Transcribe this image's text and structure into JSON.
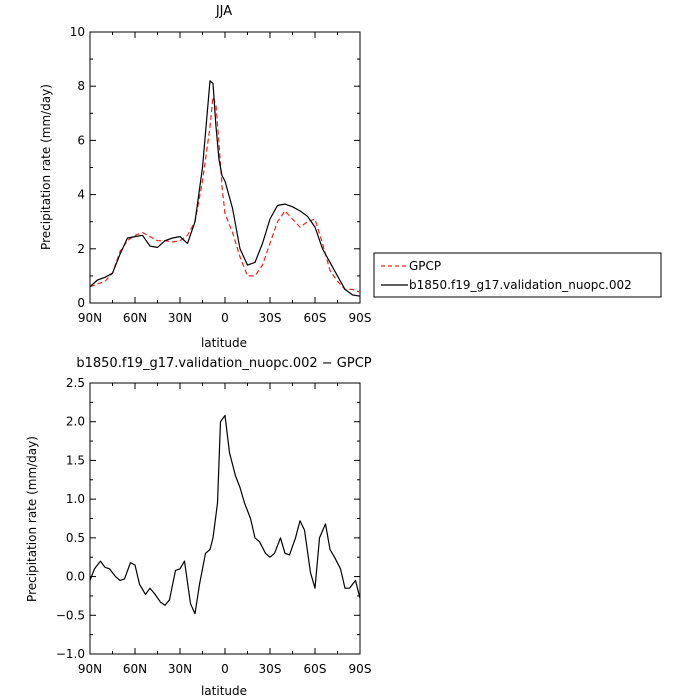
{
  "chart_data": [
    {
      "type": "line",
      "title": "JJA",
      "xlabel": "latitude",
      "ylabel": "Precipitation rate (mm/day)",
      "x_ticks": [
        90,
        60,
        30,
        0,
        -30,
        -60,
        -90
      ],
      "x_tick_labels": [
        "90N",
        "60N",
        "30N",
        "0",
        "30S",
        "60S",
        "90S"
      ],
      "xlim": [
        90,
        -90
      ],
      "ylim": [
        0,
        10
      ],
      "y_ticks": [
        0,
        2,
        4,
        6,
        8,
        10
      ],
      "y_tick_labels": [
        "0",
        "2",
        "4",
        "6",
        "8",
        "10"
      ],
      "legend_position": "right",
      "series": [
        {
          "name": "GPCP",
          "color": "#e8261f",
          "style": "dashed",
          "x": [
            90,
            85,
            80,
            75,
            70,
            65,
            60,
            55,
            50,
            45,
            40,
            35,
            30,
            25,
            20,
            15,
            10,
            8,
            6,
            4,
            2,
            0,
            -5,
            -10,
            -15,
            -20,
            -25,
            -30,
            -35,
            -40,
            -45,
            -50,
            -55,
            -60,
            -65,
            -70,
            -75,
            -80,
            -85,
            -90
          ],
          "values": [
            0.6,
            0.7,
            0.8,
            1.1,
            1.9,
            2.3,
            2.5,
            2.6,
            2.45,
            2.3,
            2.3,
            2.25,
            2.3,
            2.5,
            3.0,
            4.5,
            6.5,
            7.6,
            7.3,
            5.9,
            4.3,
            3.3,
            2.6,
            1.7,
            1.0,
            1.0,
            1.4,
            2.2,
            3.0,
            3.4,
            3.1,
            2.8,
            3.0,
            3.1,
            2.2,
            1.2,
            0.8,
            0.5,
            0.5,
            0.4
          ]
        },
        {
          "name": "b1850.f19_g17.validation_nuopc.002",
          "color": "#000000",
          "style": "solid",
          "x": [
            90,
            85,
            80,
            75,
            70,
            65,
            60,
            55,
            50,
            45,
            40,
            35,
            30,
            25,
            20,
            15,
            10,
            8,
            6,
            4,
            2,
            0,
            -5,
            -10,
            -15,
            -20,
            -25,
            -30,
            -35,
            -40,
            -45,
            -50,
            -55,
            -60,
            -65,
            -70,
            -75,
            -80,
            -85,
            -90
          ],
          "values": [
            0.6,
            0.85,
            0.95,
            1.1,
            1.8,
            2.4,
            2.45,
            2.5,
            2.1,
            2.05,
            2.3,
            2.4,
            2.45,
            2.2,
            3.0,
            5.0,
            8.2,
            8.1,
            6.5,
            5.3,
            4.7,
            4.5,
            3.5,
            2.0,
            1.4,
            1.5,
            2.2,
            3.1,
            3.6,
            3.65,
            3.55,
            3.4,
            3.2,
            2.8,
            2.0,
            1.5,
            1.0,
            0.5,
            0.3,
            0.25
          ]
        }
      ]
    },
    {
      "type": "line",
      "title": "b1850.f19_g17.validation_nuopc.002 − GPCP",
      "xlabel": "latitude",
      "ylabel": "Precipitation rate (mm/day)",
      "x_ticks": [
        90,
        60,
        30,
        0,
        -30,
        -60,
        -90
      ],
      "x_tick_labels": [
        "90N",
        "60N",
        "30N",
        "0",
        "30S",
        "60S",
        "90S"
      ],
      "xlim": [
        90,
        -90
      ],
      "ylim": [
        -1.0,
        2.5
      ],
      "y_ticks": [
        -1.0,
        -0.5,
        0.0,
        0.5,
        1.0,
        1.5,
        2.0,
        2.5
      ],
      "y_tick_labels": [
        "−1.0",
        "−0.5",
        "0.0",
        "0.5",
        "1.0",
        "1.5",
        "2.0",
        "2.5"
      ],
      "series": [
        {
          "color": "#000000",
          "style": "solid",
          "x": [
            90,
            87,
            83,
            80,
            77,
            73,
            70,
            67,
            63,
            60,
            57,
            53,
            50,
            47,
            43,
            40,
            37,
            33,
            30,
            27,
            23,
            20,
            17,
            13,
            10,
            8,
            5,
            3,
            0,
            -3,
            -7,
            -10,
            -13,
            -17,
            -20,
            -23,
            -27,
            -30,
            -33,
            -37,
            -40,
            -43,
            -47,
            -50,
            -53,
            -57,
            -60,
            -63,
            -67,
            -70,
            -73,
            -77,
            -80,
            -83,
            -87,
            -90
          ],
          "values": [
            -0.05,
            0.1,
            0.2,
            0.12,
            0.1,
            0.0,
            -0.05,
            -0.03,
            0.18,
            0.15,
            -0.1,
            -0.23,
            -0.15,
            -0.22,
            -0.33,
            -0.37,
            -0.3,
            0.08,
            0.1,
            0.2,
            -0.35,
            -0.48,
            -0.1,
            0.3,
            0.35,
            0.5,
            0.95,
            2.0,
            2.08,
            1.6,
            1.3,
            1.15,
            0.95,
            0.75,
            0.5,
            0.45,
            0.3,
            0.25,
            0.3,
            0.5,
            0.3,
            0.28,
            0.5,
            0.72,
            0.6,
            0.05,
            -0.15,
            0.5,
            0.68,
            0.35,
            0.25,
            0.1,
            -0.15,
            -0.15,
            -0.05,
            -0.28
          ]
        }
      ]
    }
  ]
}
